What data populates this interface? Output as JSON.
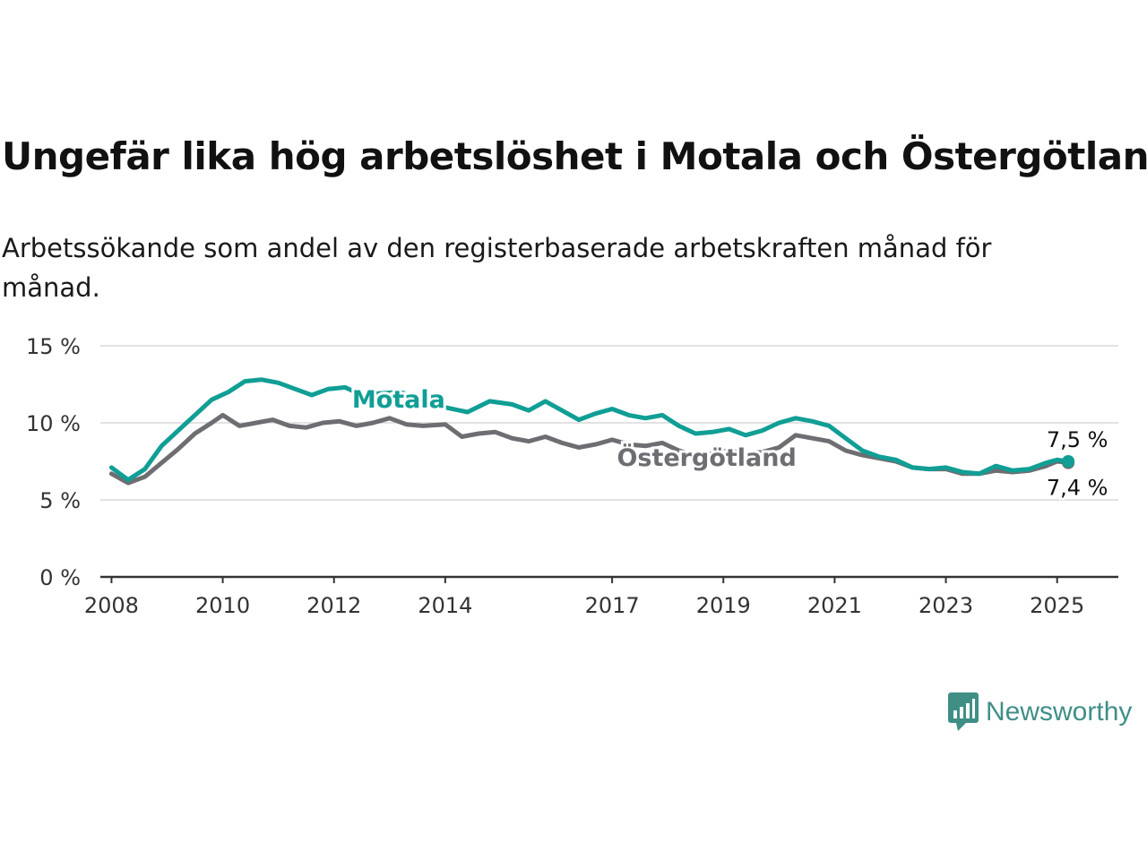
{
  "title": "Ungefär lika hög arbetslöshet i Motala och Östergötland",
  "subtitle": "Arbetssökande som andel av den registerbaserade arbetskraften månad för månad.",
  "logo_text": "Newsworthy",
  "colors": {
    "motala": "#109e95",
    "ostergotland": "#6e6d72",
    "grid": "#d9d9d9",
    "axis": "#333333",
    "logo": "#3f8f87"
  },
  "chart_data": {
    "type": "line",
    "title": "Ungefär lika hög arbetslöshet i Motala och Östergötland",
    "subtitle": "Arbetssökande som andel av den registerbaserade arbetskraften månad för månad.",
    "xlabel": "",
    "ylabel": "",
    "ylim": [
      0,
      15
    ],
    "xlim": [
      2007.8,
      2026.1
    ],
    "yticks": [
      0,
      5,
      10,
      15
    ],
    "ytick_labels": [
      "0 %",
      "5 %",
      "10 %",
      "15 %"
    ],
    "xticks": [
      2008,
      2010,
      2012,
      2014,
      2017,
      2019,
      2021,
      2023,
      2025
    ],
    "xtick_labels": [
      "2008",
      "2010",
      "2012",
      "2014",
      "2017",
      "2019",
      "2021",
      "2023",
      "2025"
    ],
    "grid": true,
    "series": [
      {
        "name": "Motala",
        "last_label": "7,5 %",
        "points": [
          [
            2008.0,
            7.1
          ],
          [
            2008.3,
            6.3
          ],
          [
            2008.6,
            7.0
          ],
          [
            2008.9,
            8.5
          ],
          [
            2009.2,
            9.5
          ],
          [
            2009.5,
            10.5
          ],
          [
            2009.8,
            11.5
          ],
          [
            2010.1,
            12.0
          ],
          [
            2010.4,
            12.7
          ],
          [
            2010.7,
            12.8
          ],
          [
            2011.0,
            12.6
          ],
          [
            2011.3,
            12.2
          ],
          [
            2011.6,
            11.8
          ],
          [
            2011.9,
            12.2
          ],
          [
            2012.2,
            12.3
          ],
          [
            2012.5,
            11.8
          ],
          [
            2012.8,
            11.9
          ],
          [
            2013.2,
            12.0
          ],
          [
            2013.6,
            11.4
          ],
          [
            2014.0,
            11.0
          ],
          [
            2014.4,
            10.7
          ],
          [
            2014.8,
            11.4
          ],
          [
            2015.2,
            11.2
          ],
          [
            2015.5,
            10.8
          ],
          [
            2015.8,
            11.4
          ],
          [
            2016.1,
            10.8
          ],
          [
            2016.4,
            10.2
          ],
          [
            2016.7,
            10.6
          ],
          [
            2017.0,
            10.9
          ],
          [
            2017.3,
            10.5
          ],
          [
            2017.6,
            10.3
          ],
          [
            2017.9,
            10.5
          ],
          [
            2018.2,
            9.8
          ],
          [
            2018.5,
            9.3
          ],
          [
            2018.8,
            9.4
          ],
          [
            2019.1,
            9.6
          ],
          [
            2019.4,
            9.2
          ],
          [
            2019.7,
            9.5
          ],
          [
            2020.0,
            10.0
          ],
          [
            2020.3,
            10.3
          ],
          [
            2020.6,
            10.1
          ],
          [
            2020.9,
            9.8
          ],
          [
            2021.2,
            9.0
          ],
          [
            2021.5,
            8.2
          ],
          [
            2021.8,
            7.8
          ],
          [
            2022.1,
            7.6
          ],
          [
            2022.4,
            7.1
          ],
          [
            2022.7,
            7.0
          ],
          [
            2023.0,
            7.1
          ],
          [
            2023.3,
            6.8
          ],
          [
            2023.6,
            6.7
          ],
          [
            2023.9,
            7.2
          ],
          [
            2024.2,
            6.9
          ],
          [
            2024.5,
            7.0
          ],
          [
            2024.8,
            7.4
          ],
          [
            2025.0,
            7.6
          ],
          [
            2025.2,
            7.5
          ]
        ]
      },
      {
        "name": "Östergötland",
        "last_label": "7,4 %",
        "points": [
          [
            2008.0,
            6.7
          ],
          [
            2008.3,
            6.1
          ],
          [
            2008.6,
            6.5
          ],
          [
            2008.9,
            7.4
          ],
          [
            2009.2,
            8.3
          ],
          [
            2009.5,
            9.3
          ],
          [
            2009.8,
            10.0
          ],
          [
            2010.0,
            10.5
          ],
          [
            2010.3,
            9.8
          ],
          [
            2010.6,
            10.0
          ],
          [
            2010.9,
            10.2
          ],
          [
            2011.2,
            9.8
          ],
          [
            2011.5,
            9.7
          ],
          [
            2011.8,
            10.0
          ],
          [
            2012.1,
            10.1
          ],
          [
            2012.4,
            9.8
          ],
          [
            2012.7,
            10.0
          ],
          [
            2013.0,
            10.3
          ],
          [
            2013.3,
            9.9
          ],
          [
            2013.6,
            9.8
          ],
          [
            2014.0,
            9.9
          ],
          [
            2014.3,
            9.1
          ],
          [
            2014.6,
            9.3
          ],
          [
            2014.9,
            9.4
          ],
          [
            2015.2,
            9.0
          ],
          [
            2015.5,
            8.8
          ],
          [
            2015.8,
            9.1
          ],
          [
            2016.1,
            8.7
          ],
          [
            2016.4,
            8.4
          ],
          [
            2016.7,
            8.6
          ],
          [
            2017.0,
            8.9
          ],
          [
            2017.3,
            8.6
          ],
          [
            2017.6,
            8.5
          ],
          [
            2017.9,
            8.7
          ],
          [
            2018.2,
            8.2
          ],
          [
            2018.5,
            7.9
          ],
          [
            2018.8,
            8.0
          ],
          [
            2019.1,
            8.2
          ],
          [
            2019.4,
            8.0
          ],
          [
            2019.7,
            8.1
          ],
          [
            2020.0,
            8.4
          ],
          [
            2020.3,
            9.2
          ],
          [
            2020.6,
            9.0
          ],
          [
            2020.9,
            8.8
          ],
          [
            2021.2,
            8.2
          ],
          [
            2021.5,
            7.9
          ],
          [
            2021.8,
            7.7
          ],
          [
            2022.1,
            7.5
          ],
          [
            2022.4,
            7.1
          ],
          [
            2022.7,
            7.0
          ],
          [
            2023.0,
            7.0
          ],
          [
            2023.3,
            6.7
          ],
          [
            2023.6,
            6.7
          ],
          [
            2023.9,
            6.9
          ],
          [
            2024.2,
            6.8
          ],
          [
            2024.5,
            6.9
          ],
          [
            2024.8,
            7.2
          ],
          [
            2025.0,
            7.5
          ],
          [
            2025.2,
            7.4
          ]
        ]
      }
    ],
    "annotations": [
      {
        "text": "Motala",
        "series": "Motala",
        "at_x": 2014.0
      },
      {
        "text": "Östergötland",
        "series": "Östergötland",
        "at_x": 2018.7
      }
    ]
  }
}
